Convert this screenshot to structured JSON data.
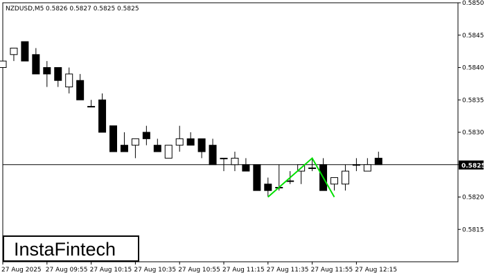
{
  "header": {
    "symbol": "NZDUSD,M5",
    "ohlc": "0.5826 0.5827 0.5825 0.5825"
  },
  "logo": {
    "text": "InstaFintech"
  },
  "current_price_label": "0.5825",
  "colors": {
    "background": "#ffffff",
    "bull_fill": "#ffffff",
    "bear_fill": "#000000",
    "candle_stroke": "#000000",
    "pattern_line": "#00e000",
    "price_tag_bg": "#000000"
  },
  "chart_data": {
    "type": "candlestick",
    "title": "",
    "ylim": [
      0.581,
      0.585
    ],
    "y_ticks": [
      "0.5815",
      "0.5820",
      "0.5825",
      "0.5830",
      "0.5835",
      "0.5840",
      "0.5845",
      "0.5850"
    ],
    "x_ticks": [
      {
        "label": "27 Aug 2025",
        "index": 0
      },
      {
        "label": "27 Aug 09:55",
        "index": 4
      },
      {
        "label": "27 Aug 10:15",
        "index": 8
      },
      {
        "label": "27 Aug 10:35",
        "index": 12
      },
      {
        "label": "27 Aug 10:55",
        "index": 16
      },
      {
        "label": "27 Aug 11:15",
        "index": 20
      },
      {
        "label": "27 Aug 11:35",
        "index": 24
      },
      {
        "label": "27 Aug 11:55",
        "index": 28
      },
      {
        "label": "27 Aug 12:15",
        "index": 32
      }
    ],
    "current_price": 0.5825,
    "candles": [
      {
        "o": 0.584,
        "h": 0.5842,
        "l": 0.5839,
        "c": 0.5841
      },
      {
        "o": 0.5842,
        "h": 0.5843,
        "l": 0.5841,
        "c": 0.5843
      },
      {
        "o": 0.5844,
        "h": 0.5844,
        "l": 0.5841,
        "c": 0.5841
      },
      {
        "o": 0.5842,
        "h": 0.5843,
        "l": 0.5839,
        "c": 0.5839
      },
      {
        "o": 0.584,
        "h": 0.5841,
        "l": 0.5837,
        "c": 0.5839
      },
      {
        "o": 0.584,
        "h": 0.584,
        "l": 0.5837,
        "c": 0.5838
      },
      {
        "o": 0.5837,
        "h": 0.584,
        "l": 0.5836,
        "c": 0.5839
      },
      {
        "o": 0.5838,
        "h": 0.5839,
        "l": 0.5835,
        "c": 0.5835
      },
      {
        "o": 0.5834,
        "h": 0.5835,
        "l": 0.5834,
        "c": 0.5834
      },
      {
        "o": 0.5835,
        "h": 0.5836,
        "l": 0.583,
        "c": 0.583
      },
      {
        "o": 0.5831,
        "h": 0.5831,
        "l": 0.5827,
        "c": 0.5827
      },
      {
        "o": 0.5828,
        "h": 0.583,
        "l": 0.5827,
        "c": 0.5827
      },
      {
        "o": 0.5828,
        "h": 0.5829,
        "l": 0.5826,
        "c": 0.5829
      },
      {
        "o": 0.583,
        "h": 0.5831,
        "l": 0.5828,
        "c": 0.5829
      },
      {
        "o": 0.5828,
        "h": 0.5829,
        "l": 0.5827,
        "c": 0.5827
      },
      {
        "o": 0.5826,
        "h": 0.5828,
        "l": 0.5826,
        "c": 0.5828
      },
      {
        "o": 0.5828,
        "h": 0.5831,
        "l": 0.5827,
        "c": 0.5829
      },
      {
        "o": 0.5829,
        "h": 0.583,
        "l": 0.5828,
        "c": 0.5828
      },
      {
        "o": 0.5829,
        "h": 0.5829,
        "l": 0.5826,
        "c": 0.5827
      },
      {
        "o": 0.5828,
        "h": 0.5829,
        "l": 0.5825,
        "c": 0.5825
      },
      {
        "o": 0.5826,
        "h": 0.5826,
        "l": 0.5824,
        "c": 0.5826
      },
      {
        "o": 0.5825,
        "h": 0.5827,
        "l": 0.5824,
        "c": 0.5826
      },
      {
        "o": 0.5825,
        "h": 0.5826,
        "l": 0.5824,
        "c": 0.5824
      },
      {
        "o": 0.5825,
        "h": 0.5825,
        "l": 0.5821,
        "c": 0.5821
      },
      {
        "o": 0.5822,
        "h": 0.5823,
        "l": 0.582,
        "c": 0.5821
      },
      {
        "o": 0.58215,
        "h": 0.5825,
        "l": 0.5821,
        "c": 0.58215
      },
      {
        "o": 0.58225,
        "h": 0.5824,
        "l": 0.5822,
        "c": 0.58225
      },
      {
        "o": 0.5824,
        "h": 0.5825,
        "l": 0.5822,
        "c": 0.5825
      },
      {
        "o": 0.58245,
        "h": 0.5826,
        "l": 0.5824,
        "c": 0.58245
      },
      {
        "o": 0.5825,
        "h": 0.5826,
        "l": 0.5821,
        "c": 0.5821
      },
      {
        "o": 0.5822,
        "h": 0.5823,
        "l": 0.5821,
        "c": 0.5823
      },
      {
        "o": 0.5822,
        "h": 0.5825,
        "l": 0.5821,
        "c": 0.5824
      },
      {
        "o": 0.5825,
        "h": 0.5826,
        "l": 0.5824,
        "c": 0.5825
      },
      {
        "o": 0.5824,
        "h": 0.5826,
        "l": 0.5824,
        "c": 0.5825
      },
      {
        "o": 0.5826,
        "h": 0.5827,
        "l": 0.5825,
        "c": 0.5825
      }
    ],
    "pattern": [
      {
        "index": 24,
        "price": 0.582
      },
      {
        "index": 28,
        "price": 0.5826
      },
      {
        "index": 30,
        "price": 0.582
      }
    ]
  }
}
